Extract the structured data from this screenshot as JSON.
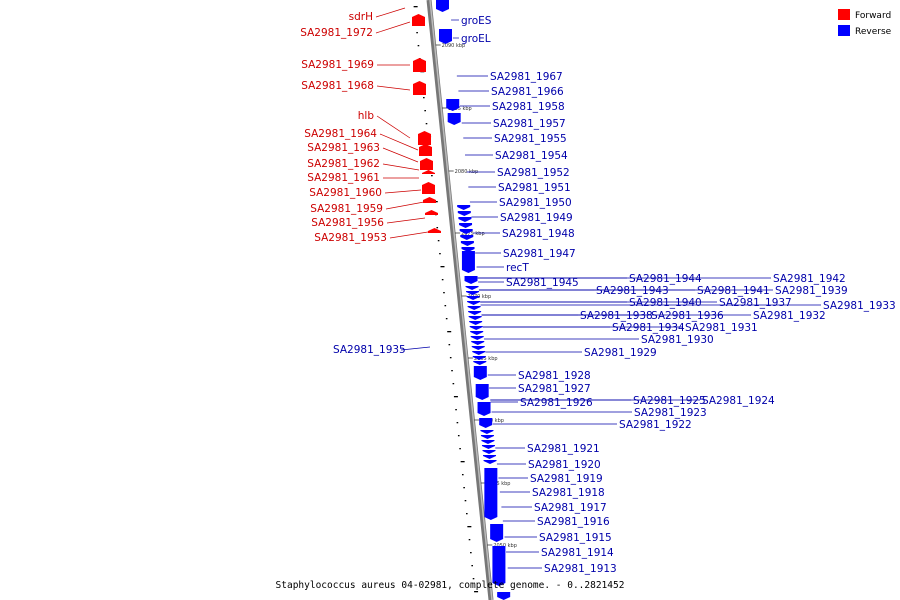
{
  "caption": "Staphylococcus aureus 04-02981, complete genome. - 0..2821452",
  "legend": [
    {
      "label": "Forward",
      "color": "#ff0000"
    },
    {
      "label": "Reverse",
      "color": "#0000ff"
    }
  ],
  "colors": {
    "forward": "#ff0000",
    "reverse": "#0000ff",
    "forward_text": "#cc0000",
    "reverse_text": "#0000aa",
    "backbone": "#888888"
  },
  "ticks": [
    "2090 kbp",
    "2085 kbp",
    "2080 kbp",
    "2075 kbp",
    "2070 kbp",
    "2065 kbp",
    "2060 kbp",
    "2055 kbp",
    "2050 kbp"
  ],
  "forward_genes": [
    "sdrH",
    "SA2981_1972",
    "SA2981_1969",
    "SA2981_1968",
    "hlb",
    "SA2981_1964",
    "SA2981_1963",
    "SA2981_1962",
    "SA2981_1961",
    "SA2981_1960",
    "SA2981_1959",
    "SA2981_1956",
    "SA2981_1953"
  ],
  "reverse_genes": [
    "groES",
    "groEL",
    "SA2981_1967",
    "SA2981_1966",
    "SA2981_1958",
    "SA2981_1957",
    "SA2981_1955",
    "SA2981_1954",
    "SA2981_1952",
    "SA2981_1951",
    "SA2981_1950",
    "SA2981_1949",
    "SA2981_1948",
    "SA2981_1947",
    "recT",
    "SA2981_1945",
    "SA2981_1944",
    "SA2981_1943",
    "SA2981_1942",
    "SA2981_1941",
    "SA2981_1939",
    "SA2981_1940",
    "SA2981_1937",
    "SA2981_1933",
    "SA2981_1938",
    "SA2981_1936",
    "SA2981_1932",
    "SA2981_1934",
    "SA2981_1931",
    "SA2981_1930",
    "SA2981_1935",
    "SA2981_1929",
    "SA2981_1928",
    "SA2981_1927",
    "SA2981_1926",
    "SA2981_1925",
    "SA2981_1924",
    "SA2981_1923",
    "SA2981_1922",
    "SA2981_1921",
    "SA2981_1920",
    "SA2981_1919",
    "SA2981_1918",
    "SA2981_1917",
    "SA2981_1916",
    "SA2981_1915",
    "SA2981_1914",
    "SA2981_1913"
  ]
}
